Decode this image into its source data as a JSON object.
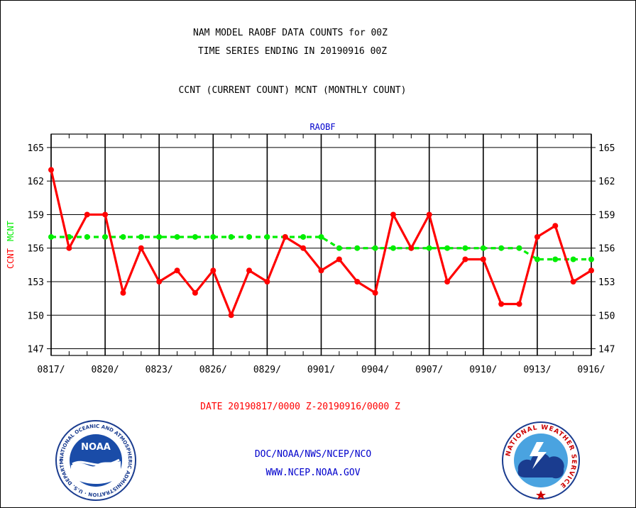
{
  "header": {
    "title_line1": "NAM MODEL RAOBF DATA COUNTS for 00Z",
    "title_line2": "TIME SERIES ENDING IN 20190916 00Z",
    "subtitle": "CCNT (CURRENT COUNT) MCNT (MONTHLY COUNT)"
  },
  "footer": {
    "date_range": "DATE 20190817/0000 Z-20190916/0000 Z",
    "org": "DOC/NOAA/NWS/NCEP/NCO",
    "url": "WWW.NCEP.NOAA.GOV"
  },
  "logos": {
    "noaa": {
      "center_text": "NOAA",
      "ring_text": "NATIONAL OCEANIC AND ATMOSPHERIC ADMINISTRATION · U.S. DEPARTMENT OF COMMERCE"
    },
    "nws": {
      "ring_text": "NATIONAL WEATHER SERVICE"
    }
  },
  "colors": {
    "ccnt": "#ff0000",
    "mcnt": "#00ee00",
    "legend_blue": "#0000cc",
    "axis": "#000000"
  },
  "chart_data": {
    "type": "line",
    "title": "RAOBF",
    "ylabel_parts": [
      {
        "text": "CCNT",
        "color": "#ff0000"
      },
      {
        "text": "MCNT",
        "color": "#00ee00"
      }
    ],
    "ylim": [
      146.4,
      166.2
    ],
    "yticks": [
      147,
      150,
      153,
      156,
      159,
      162,
      165
    ],
    "xlim": [
      0,
      30
    ],
    "xtick_positions": [
      0,
      3,
      6,
      9,
      12,
      15,
      18,
      21,
      24,
      27,
      30
    ],
    "xtick_labels": [
      "0817/",
      "0820/",
      "0823/",
      "0826/",
      "0829/",
      "0901/",
      "0904/",
      "0907/",
      "0910/",
      "0913/",
      "0916/"
    ],
    "grid": true,
    "series": [
      {
        "name": "CCNT",
        "color": "#ff0000",
        "style": "solid",
        "x": [
          0,
          1,
          2,
          3,
          4,
          5,
          6,
          7,
          8,
          9,
          10,
          11,
          12,
          13,
          14,
          15,
          16,
          17,
          18,
          19,
          20,
          21,
          22,
          23,
          24,
          25,
          26,
          27,
          28,
          29,
          30
        ],
        "values": [
          163,
          156,
          159,
          159,
          152,
          156,
          153,
          154,
          152,
          154,
          150,
          154,
          153,
          157,
          156,
          154,
          155,
          153,
          152,
          159,
          156,
          159,
          153,
          155,
          155,
          151,
          151,
          157,
          158,
          153,
          154
        ]
      },
      {
        "name": "MCNT",
        "color": "#00ee00",
        "style": "dashed",
        "x": [
          0,
          1,
          2,
          3,
          4,
          5,
          6,
          7,
          8,
          9,
          10,
          11,
          12,
          13,
          14,
          15,
          16,
          17,
          18,
          19,
          20,
          21,
          22,
          23,
          24,
          25,
          26,
          27,
          28,
          29,
          30
        ],
        "values": [
          157,
          157,
          157,
          157,
          157,
          157,
          157,
          157,
          157,
          157,
          157,
          157,
          157,
          157,
          157,
          157,
          156,
          156,
          156,
          156,
          156,
          156,
          156,
          156,
          156,
          156,
          156,
          155,
          155,
          155,
          155
        ]
      }
    ]
  }
}
